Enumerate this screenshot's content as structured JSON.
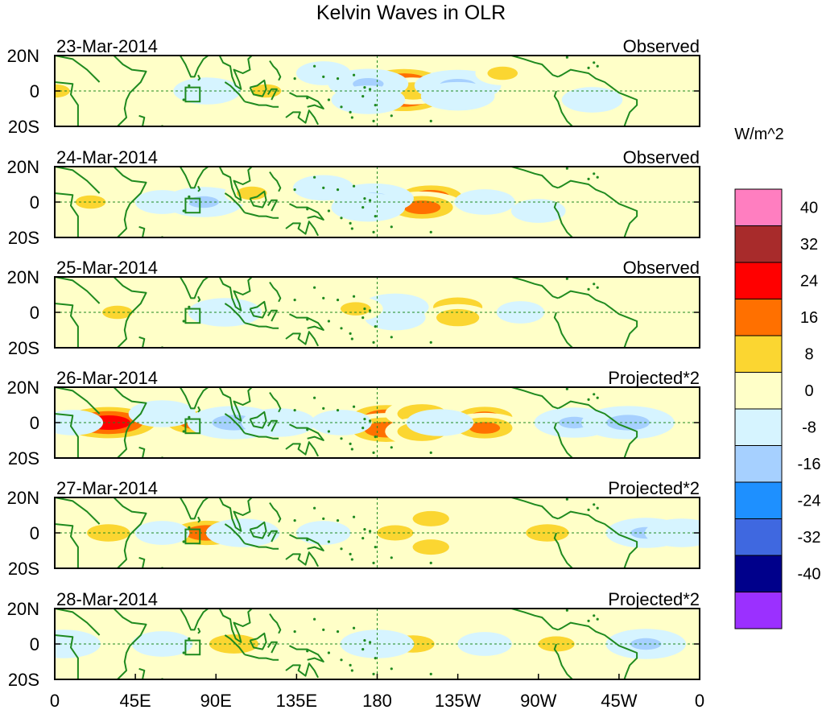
{
  "chart_data": {
    "type": "heatmap",
    "title": "Kelvin Waves in OLR",
    "colorbar": {
      "unit": "W/m^2",
      "tick_labels": [
        "40",
        "32",
        "24",
        "16",
        "8",
        "0",
        "-8",
        "-16",
        "-24",
        "-32",
        "-40"
      ],
      "colors": [
        "#ff7ec0",
        "#a82b2b",
        "#ff0000",
        "#ff7000",
        "#fbd631",
        "#ffffc8",
        "#d6f4ff",
        "#a6d0ff",
        "#1e90ff",
        "#3f68e0",
        "#00008b",
        "#9b30ff"
      ]
    },
    "x_axis": {
      "tick_labels": [
        "0",
        "45E",
        "90E",
        "135E",
        "180",
        "135W",
        "90W",
        "45W",
        "0"
      ],
      "range_deg_east": [
        0,
        360
      ]
    },
    "y_axis": {
      "tick_labels": [
        "20N",
        "0",
        "20S"
      ],
      "range_lat": [
        -20,
        20
      ]
    },
    "land_color": "#1f8a1f",
    "panels": [
      {
        "date": "23-Mar-2014",
        "label": "Observed",
        "features": [
          {
            "lon": 195,
            "lat": 5,
            "value": 22
          },
          {
            "lon": 195,
            "lat": -4,
            "value": 22
          },
          {
            "lon": 200,
            "lat": 0,
            "value": 12
          },
          {
            "lon": 225,
            "lat": 3,
            "value": -18
          },
          {
            "lon": 225,
            "lat": -3,
            "value": -14
          },
          {
            "lon": 175,
            "lat": 4,
            "value": -16
          },
          {
            "lon": 175,
            "lat": -5,
            "value": -14
          },
          {
            "lon": 118,
            "lat": 0,
            "value": 8
          },
          {
            "lon": 85,
            "lat": 0,
            "value": -12
          },
          {
            "lon": 250,
            "lat": 10,
            "value": 8
          },
          {
            "lon": 300,
            "lat": -5,
            "value": -10
          },
          {
            "lon": 0,
            "lat": 0,
            "value": 8
          },
          {
            "lon": 45,
            "lat": 0,
            "value": 6
          },
          {
            "lon": 150,
            "lat": 10,
            "value": -8
          }
        ]
      },
      {
        "date": "24-Mar-2014",
        "label": "Observed",
        "features": [
          {
            "lon": 210,
            "lat": 3,
            "value": 18
          },
          {
            "lon": 205,
            "lat": -3,
            "value": 18
          },
          {
            "lon": 178,
            "lat": 2,
            "value": -16
          },
          {
            "lon": 175,
            "lat": -3,
            "value": -14
          },
          {
            "lon": 83,
            "lat": 0,
            "value": -16
          },
          {
            "lon": 110,
            "lat": 5,
            "value": 8
          },
          {
            "lon": 240,
            "lat": 0,
            "value": -10
          },
          {
            "lon": 20,
            "lat": 0,
            "value": 8
          },
          {
            "lon": 60,
            "lat": 0,
            "value": -8
          },
          {
            "lon": 310,
            "lat": 0,
            "value": 6
          },
          {
            "lon": 150,
            "lat": 8,
            "value": -10
          },
          {
            "lon": 270,
            "lat": -5,
            "value": -8
          }
        ]
      },
      {
        "date": "25-Mar-2014",
        "label": "Observed",
        "features": [
          {
            "lon": 225,
            "lat": 3,
            "value": 14
          },
          {
            "lon": 225,
            "lat": -3,
            "value": 12
          },
          {
            "lon": 190,
            "lat": 3,
            "value": -12
          },
          {
            "lon": 190,
            "lat": -3,
            "value": -10
          },
          {
            "lon": 168,
            "lat": 2,
            "value": 8
          },
          {
            "lon": 95,
            "lat": 0,
            "value": -14
          },
          {
            "lon": 35,
            "lat": 0,
            "value": 8
          },
          {
            "lon": 130,
            "lat": -3,
            "value": 6
          },
          {
            "lon": 290,
            "lat": -5,
            "value": 6
          },
          {
            "lon": 260,
            "lat": 0,
            "value": -6
          }
        ]
      },
      {
        "date": "26-Mar-2014",
        "label": "Projected*2",
        "features": [
          {
            "lon": 30,
            "lat": 0,
            "value": 28
          },
          {
            "lon": 80,
            "lat": 0,
            "value": 18
          },
          {
            "lon": 100,
            "lat": 0,
            "value": -20
          },
          {
            "lon": 185,
            "lat": 3,
            "value": 20
          },
          {
            "lon": 185,
            "lat": -4,
            "value": 20
          },
          {
            "lon": 205,
            "lat": 5,
            "value": 14
          },
          {
            "lon": 205,
            "lat": -5,
            "value": 14
          },
          {
            "lon": 240,
            "lat": 3,
            "value": 16
          },
          {
            "lon": 240,
            "lat": -3,
            "value": 16
          },
          {
            "lon": 215,
            "lat": 0,
            "value": -12
          },
          {
            "lon": 290,
            "lat": 0,
            "value": -16
          },
          {
            "lon": 320,
            "lat": 0,
            "value": -20
          },
          {
            "lon": 125,
            "lat": 0,
            "value": -14
          },
          {
            "lon": 60,
            "lat": 5,
            "value": -12
          },
          {
            "lon": 10,
            "lat": 0,
            "value": -10
          },
          {
            "lon": 160,
            "lat": 0,
            "value": -10
          }
        ]
      },
      {
        "date": "27-Mar-2014",
        "label": "Projected*2",
        "features": [
          {
            "lon": 85,
            "lat": 0,
            "value": 20
          },
          {
            "lon": 30,
            "lat": 0,
            "value": 12
          },
          {
            "lon": 190,
            "lat": 0,
            "value": 10
          },
          {
            "lon": 210,
            "lat": 8,
            "value": 10
          },
          {
            "lon": 210,
            "lat": -8,
            "value": 10
          },
          {
            "lon": 105,
            "lat": 0,
            "value": -14
          },
          {
            "lon": 330,
            "lat": 0,
            "value": -16
          },
          {
            "lon": 350,
            "lat": 0,
            "value": -14
          },
          {
            "lon": 275,
            "lat": 0,
            "value": 12
          },
          {
            "lon": 60,
            "lat": 0,
            "value": -8
          },
          {
            "lon": 150,
            "lat": 0,
            "value": -8
          },
          {
            "lon": 235,
            "lat": 0,
            "value": 6
          }
        ]
      },
      {
        "date": "28-Mar-2014",
        "label": "Projected*2",
        "features": [
          {
            "lon": 100,
            "lat": 0,
            "value": 14
          },
          {
            "lon": 200,
            "lat": 0,
            "value": 12
          },
          {
            "lon": 180,
            "lat": 0,
            "value": -14
          },
          {
            "lon": 330,
            "lat": 0,
            "value": -16
          },
          {
            "lon": 5,
            "lat": 0,
            "value": -14
          },
          {
            "lon": 60,
            "lat": 0,
            "value": -10
          },
          {
            "lon": 280,
            "lat": 0,
            "value": 10
          },
          {
            "lon": 240,
            "lat": 0,
            "value": -8
          },
          {
            "lon": 130,
            "lat": 0,
            "value": 6
          }
        ]
      }
    ]
  }
}
